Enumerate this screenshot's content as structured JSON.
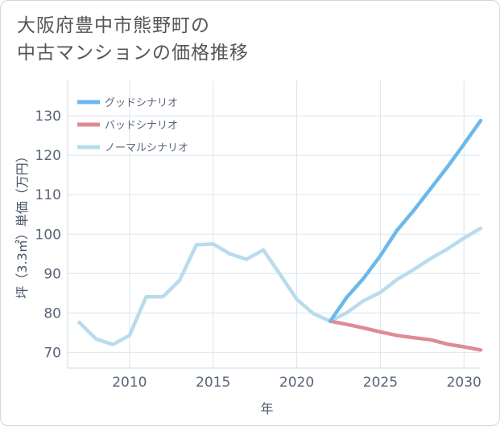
{
  "title_line1": "大阪府豊中市熊野町の",
  "title_line2": "中古マンションの価格推移",
  "chart_data": {
    "type": "line",
    "xlabel": "年",
    "ylabel": "坪（3.3㎡）単価（万円）",
    "xlim": [
      2006.3,
      2031
    ],
    "ylim": [
      66,
      139
    ],
    "xticks": [
      2010,
      2015,
      2020,
      2025,
      2030
    ],
    "yticks": [
      70,
      80,
      90,
      100,
      110,
      120,
      130
    ],
    "grid": true,
    "legend_position": "top-left",
    "series": [
      {
        "name": "グッドシナリオ",
        "color": "#6cb8ec",
        "x": [
          2022,
          2023,
          2024,
          2025,
          2026,
          2027,
          2028,
          2029,
          2030,
          2031
        ],
        "y": [
          77.9,
          84.0,
          88.8,
          94.5,
          101.0,
          106.0,
          111.5,
          117.0,
          122.8,
          128.8
        ]
      },
      {
        "name": "バッドシナリオ",
        "color": "#de8c92",
        "x": [
          2022,
          2023,
          2024,
          2025,
          2026,
          2027,
          2028,
          2029,
          2030,
          2031
        ],
        "y": [
          77.9,
          77.1,
          76.2,
          75.2,
          74.3,
          73.7,
          73.2,
          72.1,
          71.4,
          70.6
        ]
      },
      {
        "name": "ノーマルシナリオ",
        "color": "#b8dcee",
        "x": [
          2007,
          2008,
          2009,
          2010,
          2011,
          2012,
          2013,
          2014,
          2015,
          2016,
          2017,
          2018,
          2019,
          2020,
          2021,
          2022,
          2023,
          2024,
          2025,
          2026,
          2027,
          2028,
          2029,
          2030,
          2031
        ],
        "y": [
          77.6,
          73.4,
          72.0,
          74.3,
          84.1,
          84.1,
          88.3,
          97.3,
          97.5,
          95.0,
          93.6,
          96.0,
          89.8,
          83.5,
          79.8,
          77.9,
          80.1,
          83.1,
          85.2,
          88.5,
          91.0,
          93.8,
          96.2,
          99.0,
          101.5
        ]
      }
    ]
  }
}
